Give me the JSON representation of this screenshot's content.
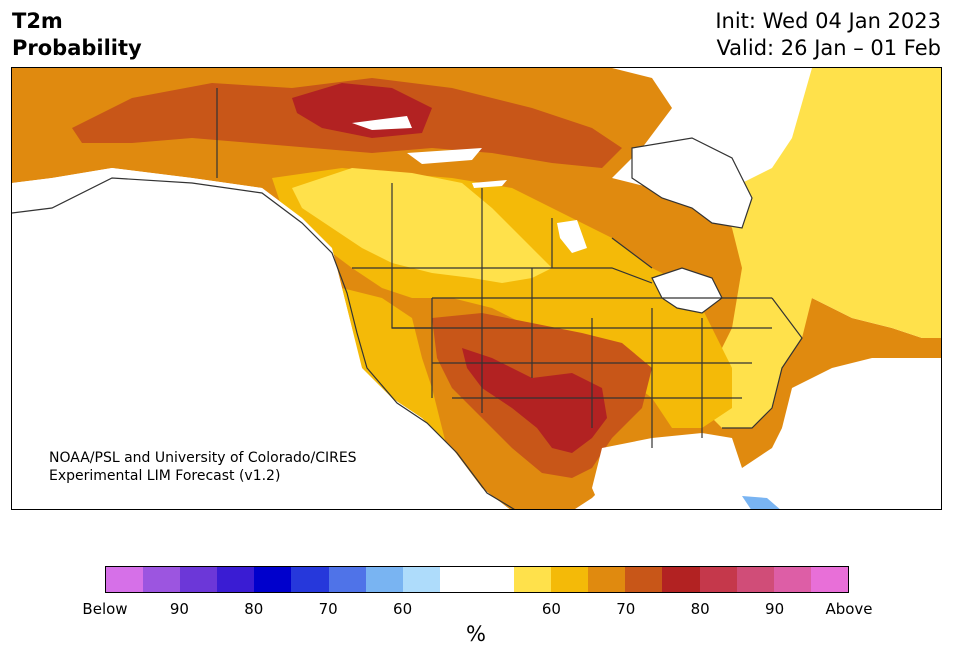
{
  "header": {
    "title_line1": "T2m",
    "title_line2": "Probability",
    "init": "Init: Wed 04 Jan 2023",
    "valid": "Valid: 26 Jan – 01 Feb"
  },
  "credit": {
    "line1": "NOAA/PSL and University of Colorado/CIRES",
    "line2": "Experimental LIM Forecast (v1.2)"
  },
  "colorbar": {
    "colors": [
      "#d670e8",
      "#9c55e0",
      "#6c37d8",
      "#3a1cd3",
      "#0000cc",
      "#2638db",
      "#4f73e8",
      "#79b4f2",
      "#aedcfb",
      "#ffffff",
      "#ffffff",
      "#ffe14b",
      "#f4ba08",
      "#e08a0f",
      "#c85618",
      "#b22222",
      "#c5384b",
      "#d04d78",
      "#dd5ea6",
      "#e86fd8"
    ],
    "labels": [
      "Below",
      "90",
      "80",
      "70",
      "60",
      "60",
      "70",
      "80",
      "90",
      "Above"
    ],
    "unit": "%"
  },
  "legend_colors": {
    "p50_60": "#ffe14b",
    "p60_70": "#f4ba08",
    "p70_80": "#e08a0f",
    "p80_90": "#c85618",
    "p90_plus": "#b22222",
    "below_light": "#79b4f2",
    "below_lighter": "#aedcfb"
  }
}
